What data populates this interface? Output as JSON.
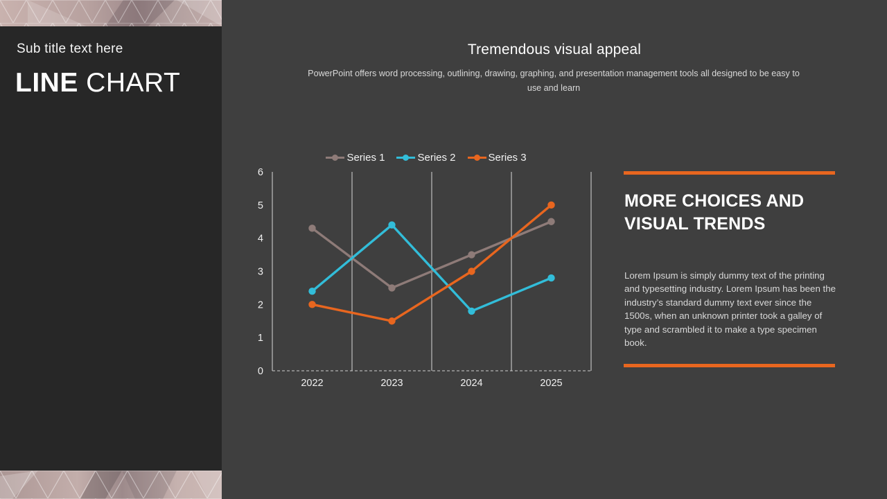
{
  "sidebar": {
    "subtitle": "Sub title text here",
    "title_bold": "LINE",
    "title_light": " CHART"
  },
  "header": {
    "title": "Tremendous visual appeal",
    "subtitle": "PowerPoint offers word processing, outlining, drawing, graphing, and presentation management tools all designed to be easy to use and learn"
  },
  "right_panel": {
    "heading": "MORE CHOICES AND VISUAL TRENDS",
    "body": "Lorem Ipsum is simply dummy text of the printing and typesetting industry. Lorem Ipsum has been the industry’s standard dummy text ever since the 1500s, when an unknown printer took a galley of type and scrambled it to make a type specimen book.",
    "accent_color": "#e8661f"
  },
  "chart_data": {
    "type": "line",
    "title": "",
    "xlabel": "",
    "ylabel": "",
    "categories": [
      "2022",
      "2023",
      "2024",
      "2025"
    ],
    "series": [
      {
        "name": "Series 1",
        "color": "#8e7b78",
        "values": [
          4.3,
          2.5,
          3.5,
          4.5
        ]
      },
      {
        "name": "Series 2",
        "color": "#32bdd9",
        "values": [
          2.4,
          4.4,
          1.8,
          2.8
        ]
      },
      {
        "name": "Series 3",
        "color": "#e8661f",
        "values": [
          2.0,
          1.5,
          3.0,
          5.0
        ]
      }
    ],
    "ylim": [
      0,
      6
    ],
    "yticks": [
      0,
      1,
      2,
      3,
      4,
      5,
      6
    ],
    "grid": "vertical solid gridlines at category boundaries; dashed horizontal baseline at y=0",
    "legend_position": "top-center",
    "colors": {
      "background": "#3f3f3f",
      "sidebar_background": "#272727",
      "gridline": "#d9d9d9",
      "tick_text": "#f0f0f0"
    }
  }
}
